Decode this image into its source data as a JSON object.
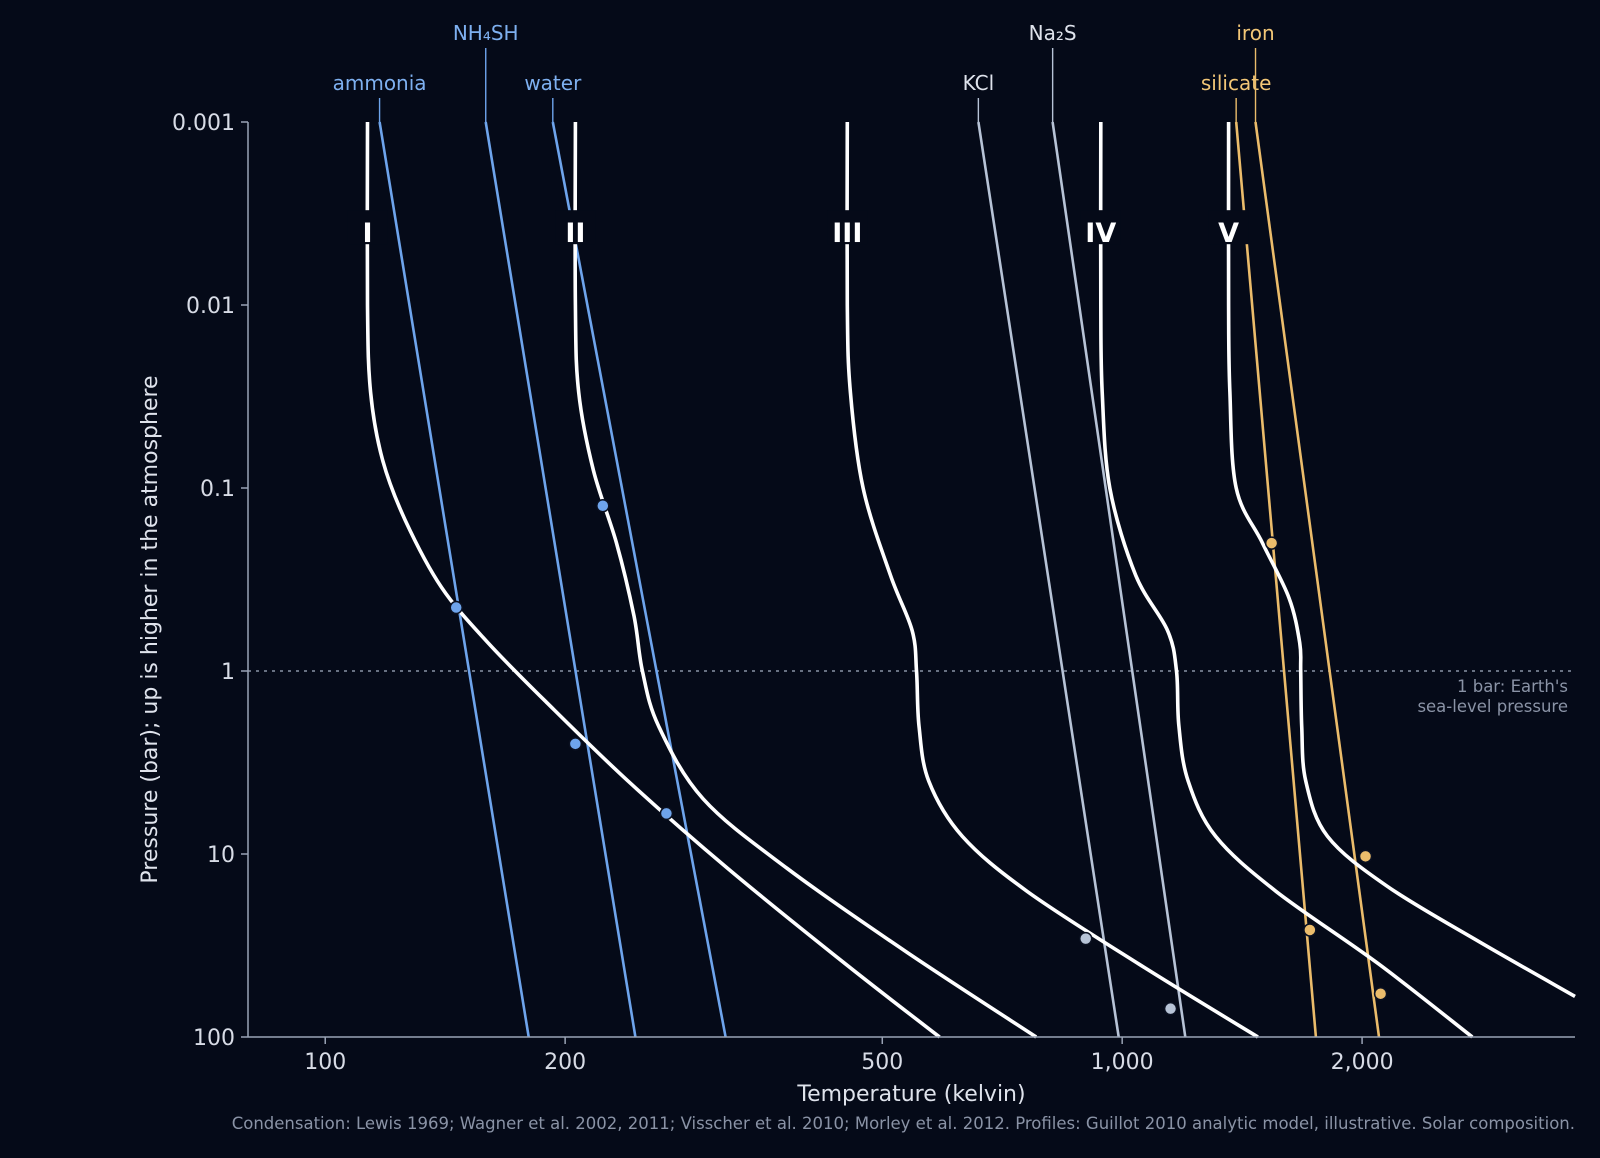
{
  "chart_data": {
    "type": "line",
    "xlabel": "Temperature (kelvin)",
    "ylabel": "Pressure (bar); up is higher in the atmosphere",
    "x_scale": "log",
    "y_scale": "log",
    "y_inverted": true,
    "xlim": [
      80,
      3700
    ],
    "ylim": [
      100,
      0.001
    ],
    "x_ticks": [
      100,
      200,
      500,
      1000,
      2000
    ],
    "x_tick_labels": [
      "100",
      "200",
      "500",
      "1,000",
      "2,000"
    ],
    "y_ticks": [
      0.001,
      0.01,
      0.1,
      1,
      10,
      100
    ],
    "y_tick_labels": [
      "0.001",
      "0.01",
      "0.1",
      "1",
      "10",
      "100"
    ],
    "grid": false,
    "reference_line": {
      "pressure": 1,
      "label_line1": "1 bar: Earth's",
      "label_line2": "sea-level pressure"
    },
    "source": "Condensation: Lewis 1969; Wagner et al. 2002, 2011; Visscher et al. 2010; Morley et al. 2012. Profiles: Guillot 2010 analytic model, illustrative. Solar composition.",
    "profiles": [
      {
        "label": "I",
        "points": [
          [
            113,
            0.001
          ],
          [
            113,
            0.01
          ],
          [
            114,
            0.03
          ],
          [
            118,
            0.07
          ],
          [
            126,
            0.15
          ],
          [
            140,
            0.35
          ],
          [
            160,
            0.7
          ],
          [
            190,
            1.5
          ],
          [
            240,
            4
          ],
          [
            320,
            12
          ],
          [
            450,
            40
          ],
          [
            590,
            100
          ]
        ]
      },
      {
        "label": "II",
        "points": [
          [
            206,
            0.001
          ],
          [
            206,
            0.01
          ],
          [
            208,
            0.03
          ],
          [
            217,
            0.08
          ],
          [
            232,
            0.2
          ],
          [
            244,
            0.5
          ],
          [
            250,
            1
          ],
          [
            262,
            2
          ],
          [
            298,
            5
          ],
          [
            380,
            12
          ],
          [
            540,
            35
          ],
          [
            780,
            100
          ]
        ]
      },
      {
        "label": "III",
        "points": [
          [
            452,
            0.001
          ],
          [
            452,
            0.01
          ],
          [
            456,
            0.03
          ],
          [
            473,
            0.1
          ],
          [
            512,
            0.3
          ],
          [
            545,
            0.6
          ],
          [
            552,
            1
          ],
          [
            556,
            2
          ],
          [
            572,
            4
          ],
          [
            630,
            8
          ],
          [
            760,
            16
          ],
          [
            1050,
            40
          ],
          [
            1480,
            100
          ]
        ]
      },
      {
        "label": "IV",
        "points": [
          [
            940,
            0.001
          ],
          [
            940,
            0.01
          ],
          [
            944,
            0.03
          ],
          [
            965,
            0.1
          ],
          [
            1040,
            0.3
          ],
          [
            1140,
            0.6
          ],
          [
            1170,
            1
          ],
          [
            1178,
            2
          ],
          [
            1210,
            4
          ],
          [
            1310,
            8
          ],
          [
            1560,
            16
          ],
          [
            2100,
            40
          ],
          [
            2750,
            100
          ]
        ]
      },
      {
        "label": "V",
        "points": [
          [
            1360,
            0.001
          ],
          [
            1360,
            0.01
          ],
          [
            1365,
            0.03
          ],
          [
            1390,
            0.1
          ],
          [
            1500,
            0.2
          ],
          [
            1620,
            0.4
          ],
          [
            1670,
            0.7
          ],
          [
            1675,
            1
          ],
          [
            1680,
            2
          ],
          [
            1700,
            4
          ],
          [
            1810,
            8
          ],
          [
            2150,
            15
          ],
          [
            2800,
            30
          ],
          [
            3700,
            60
          ]
        ]
      }
    ],
    "condensation_curves": [
      {
        "name": "ammonia",
        "group": "ice",
        "points": [
          [
            117,
            0.001
          ],
          [
            180,
            100
          ]
        ]
      },
      {
        "name": "NH₄SH",
        "group": "ice",
        "points": [
          [
            159,
            0.001
          ],
          [
            245,
            100
          ]
        ]
      },
      {
        "name": "water",
        "group": "ice",
        "points": [
          [
            193,
            0.001
          ],
          [
            318,
            100
          ]
        ]
      },
      {
        "name": "KCl",
        "group": "salt",
        "points": [
          [
            660,
            0.001
          ],
          [
            990,
            100
          ]
        ]
      },
      {
        "name": "Na₂S",
        "group": "salt",
        "points": [
          [
            818,
            0.001
          ],
          [
            1200,
            100
          ]
        ]
      },
      {
        "name": "silicate",
        "group": "mineral",
        "points": [
          [
            1390,
            0.001
          ],
          [
            1750,
            100
          ]
        ]
      },
      {
        "name": "iron",
        "group": "mineral",
        "points": [
          [
            1470,
            0.001
          ],
          [
            2100,
            100
          ]
        ]
      }
    ],
    "intersections": [
      {
        "t": 146,
        "p": 0.45,
        "group": "ice"
      },
      {
        "t": 206,
        "p": 2.5,
        "group": "ice"
      },
      {
        "t": 223,
        "p": 0.125,
        "group": "ice"
      },
      {
        "t": 268,
        "p": 6.0,
        "group": "ice"
      },
      {
        "t": 900,
        "p": 29,
        "group": "salt"
      },
      {
        "t": 1150,
        "p": 70,
        "group": "salt"
      },
      {
        "t": 1540,
        "p": 0.2,
        "group": "mineral"
      },
      {
        "t": 1720,
        "p": 26,
        "group": "mineral"
      },
      {
        "t": 2020,
        "p": 10.3,
        "group": "mineral"
      },
      {
        "t": 2110,
        "p": 58,
        "group": "mineral"
      }
    ]
  },
  "colors": {
    "background": "#050a18",
    "axis": "#9aa3b5",
    "profile": "#ffffff",
    "ice": "#6ea4ec",
    "salt": "#b7c3d6",
    "mineral": "#ebbc6b",
    "ice_label": "#7eb0f0",
    "salt_label": "#dfe3ec",
    "mineral_label": "#f3c777",
    "refline": "#8a93a6"
  }
}
